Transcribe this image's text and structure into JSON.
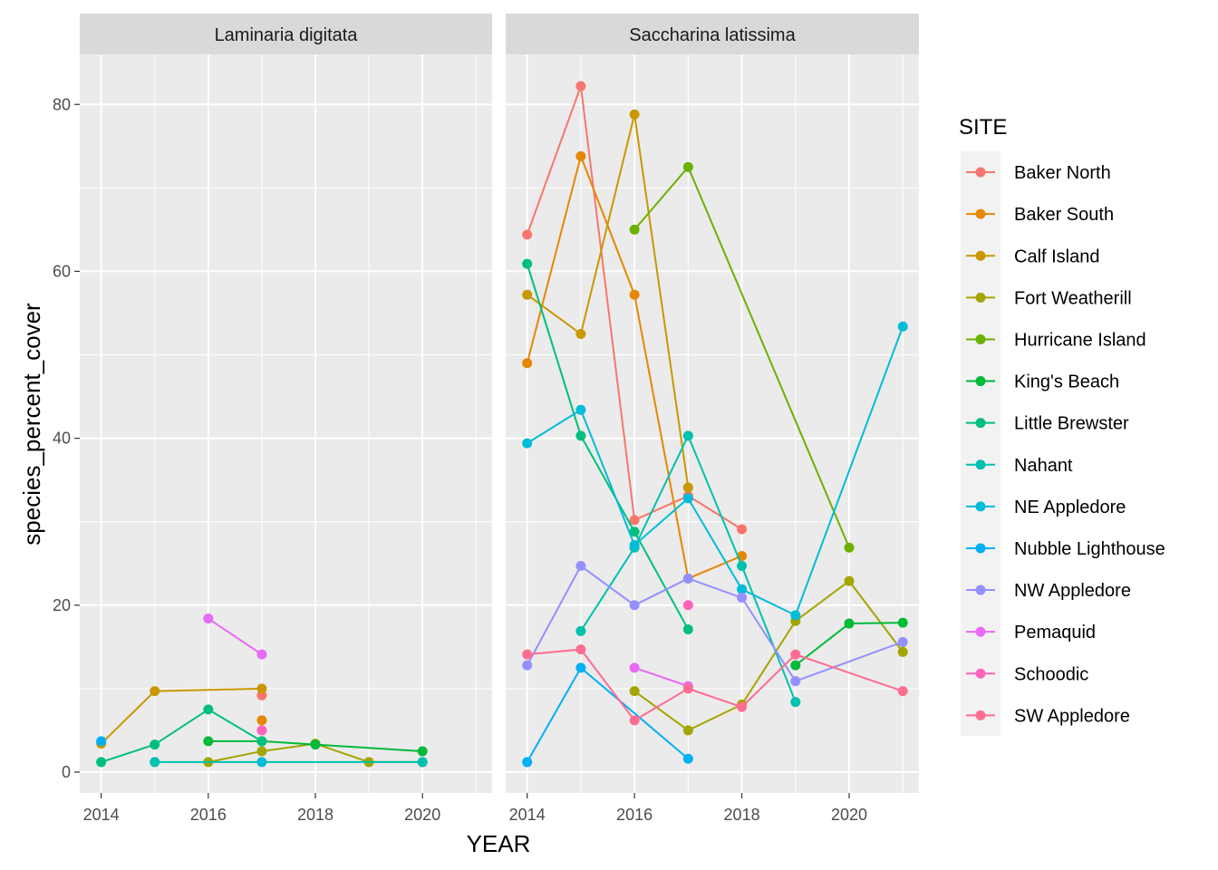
{
  "chart_data": {
    "type": "line",
    "xlabel": "YEAR",
    "ylabel": "species_percent_cover",
    "xlim": [
      2013.6,
      2021.3
    ],
    "ylim": [
      -2.5,
      86
    ],
    "x_ticks": [
      2014,
      2016,
      2018,
      2020
    ],
    "y_ticks": [
      0,
      20,
      40,
      60,
      80
    ],
    "legend_title": "SITE",
    "legend_position": "right",
    "sites": [
      {
        "name": "Baker North",
        "color": "#F8766D"
      },
      {
        "name": "Baker South",
        "color": "#E58700"
      },
      {
        "name": "Calf Island",
        "color": "#C99800"
      },
      {
        "name": "Fort Weatherill",
        "color": "#A3A500"
      },
      {
        "name": "Hurricane Island",
        "color": "#6BB100"
      },
      {
        "name": "King's Beach",
        "color": "#00BA38"
      },
      {
        "name": "Little Brewster",
        "color": "#00BF7D"
      },
      {
        "name": "Nahant",
        "color": "#00C0AF"
      },
      {
        "name": "NE Appledore",
        "color": "#00BCD8"
      },
      {
        "name": "Nubble Lighthouse",
        "color": "#00B0F6"
      },
      {
        "name": "NW Appledore",
        "color": "#9590FF"
      },
      {
        "name": "Pemaquid",
        "color": "#E76BF3"
      },
      {
        "name": "Schoodic",
        "color": "#FF62BC"
      },
      {
        "name": "SW Appledore",
        "color": "#FF6C91"
      }
    ],
    "facets": [
      {
        "label": "Laminaria digitata",
        "series": [
          {
            "site": "Baker North",
            "points": [
              [
                2017,
                9.2
              ]
            ]
          },
          {
            "site": "Baker South",
            "points": [
              [
                2017,
                6.2
              ]
            ]
          },
          {
            "site": "Calf Island",
            "points": [
              [
                2014,
                3.4
              ],
              [
                2015,
                9.7
              ],
              [
                2017,
                10.0
              ]
            ]
          },
          {
            "site": "Fort Weatherill",
            "points": [
              [
                2016,
                1.2
              ],
              [
                2017,
                2.5
              ],
              [
                2018,
                3.4
              ],
              [
                2019,
                1.2
              ],
              [
                2020,
                1.2
              ]
            ]
          },
          {
            "site": "King's Beach",
            "points": [
              [
                2016,
                3.7
              ],
              [
                2017,
                3.7
              ],
              [
                2018,
                3.3
              ],
              [
                2020,
                2.5
              ]
            ]
          },
          {
            "site": "Little Brewster",
            "points": [
              [
                2014,
                1.2
              ],
              [
                2015,
                3.3
              ],
              [
                2016,
                7.5
              ],
              [
                2017,
                3.7
              ]
            ]
          },
          {
            "site": "Nahant",
            "points": [
              [
                2015,
                1.2
              ],
              [
                2020,
                1.2
              ]
            ]
          },
          {
            "site": "NE Appledore",
            "points": [
              [
                2017,
                1.2
              ]
            ]
          },
          {
            "site": "Nubble Lighthouse",
            "points": [
              [
                2014,
                3.7
              ]
            ]
          },
          {
            "site": "Pemaquid",
            "points": [
              [
                2016,
                18.4
              ],
              [
                2017,
                14.1
              ]
            ]
          },
          {
            "site": "Schoodic",
            "points": [
              [
                2017,
                5.0
              ]
            ]
          }
        ]
      },
      {
        "label": "Saccharina latissima",
        "series": [
          {
            "site": "Baker North",
            "points": [
              [
                2014,
                64.4
              ],
              [
                2015,
                82.2
              ],
              [
                2016,
                30.2
              ],
              [
                2017,
                33.1
              ],
              [
                2018,
                29.1
              ]
            ]
          },
          {
            "site": "Baker South",
            "points": [
              [
                2014,
                49.0
              ],
              [
                2015,
                73.8
              ],
              [
                2016,
                57.2
              ],
              [
                2017,
                23.2
              ],
              [
                2018,
                25.9
              ]
            ]
          },
          {
            "site": "Calf Island",
            "points": [
              [
                2014,
                57.2
              ],
              [
                2015,
                52.5
              ],
              [
                2016,
                78.8
              ],
              [
                2017,
                34.1
              ]
            ]
          },
          {
            "site": "Fort Weatherill",
            "points": [
              [
                2016,
                9.7
              ],
              [
                2017,
                5.0
              ],
              [
                2018,
                8.1
              ],
              [
                2019,
                18.1
              ],
              [
                2020,
                22.9
              ],
              [
                2021,
                14.4
              ]
            ]
          },
          {
            "site": "Hurricane Island",
            "points": [
              [
                2016,
                65.0
              ],
              [
                2017,
                72.5
              ],
              [
                2020,
                26.9
              ]
            ]
          },
          {
            "site": "King's Beach",
            "points": [
              [
                2019,
                12.8
              ],
              [
                2020,
                17.8
              ],
              [
                2021,
                17.9
              ]
            ]
          },
          {
            "site": "Little Brewster",
            "points": [
              [
                2014,
                60.9
              ],
              [
                2015,
                40.3
              ],
              [
                2016,
                28.8
              ],
              [
                2017,
                17.1
              ]
            ]
          },
          {
            "site": "Nahant",
            "points": [
              [
                2015,
                16.9
              ],
              [
                2016,
                26.9
              ],
              [
                2017,
                40.3
              ],
              [
                2018,
                24.7
              ],
              [
                2019,
                8.4
              ]
            ]
          },
          {
            "site": "NE Appledore",
            "points": [
              [
                2014,
                39.4
              ],
              [
                2015,
                43.4
              ],
              [
                2016,
                27.2
              ],
              [
                2017,
                32.8
              ],
              [
                2018,
                21.9
              ],
              [
                2019,
                18.8
              ],
              [
                2021,
                53.4
              ]
            ]
          },
          {
            "site": "Nubble Lighthouse",
            "points": [
              [
                2014,
                1.2
              ],
              [
                2015,
                12.5
              ],
              [
                2017,
                1.6
              ]
            ]
          },
          {
            "site": "NW Appledore",
            "points": [
              [
                2014,
                12.8
              ],
              [
                2015,
                24.7
              ],
              [
                2016,
                20.0
              ],
              [
                2017,
                23.2
              ],
              [
                2018,
                20.9
              ],
              [
                2019,
                10.9
              ],
              [
                2021,
                15.6
              ]
            ]
          },
          {
            "site": "Pemaquid",
            "points": [
              [
                2016,
                12.5
              ],
              [
                2017,
                10.3
              ]
            ]
          },
          {
            "site": "Schoodic",
            "points": [
              [
                2017,
                20.0
              ]
            ]
          },
          {
            "site": "SW Appledore",
            "points": [
              [
                2014,
                14.1
              ],
              [
                2015,
                14.7
              ],
              [
                2016,
                6.2
              ],
              [
                2017,
                10.0
              ],
              [
                2018,
                7.8
              ],
              [
                2019,
                14.1
              ],
              [
                2021,
                9.7
              ]
            ]
          }
        ]
      }
    ]
  }
}
